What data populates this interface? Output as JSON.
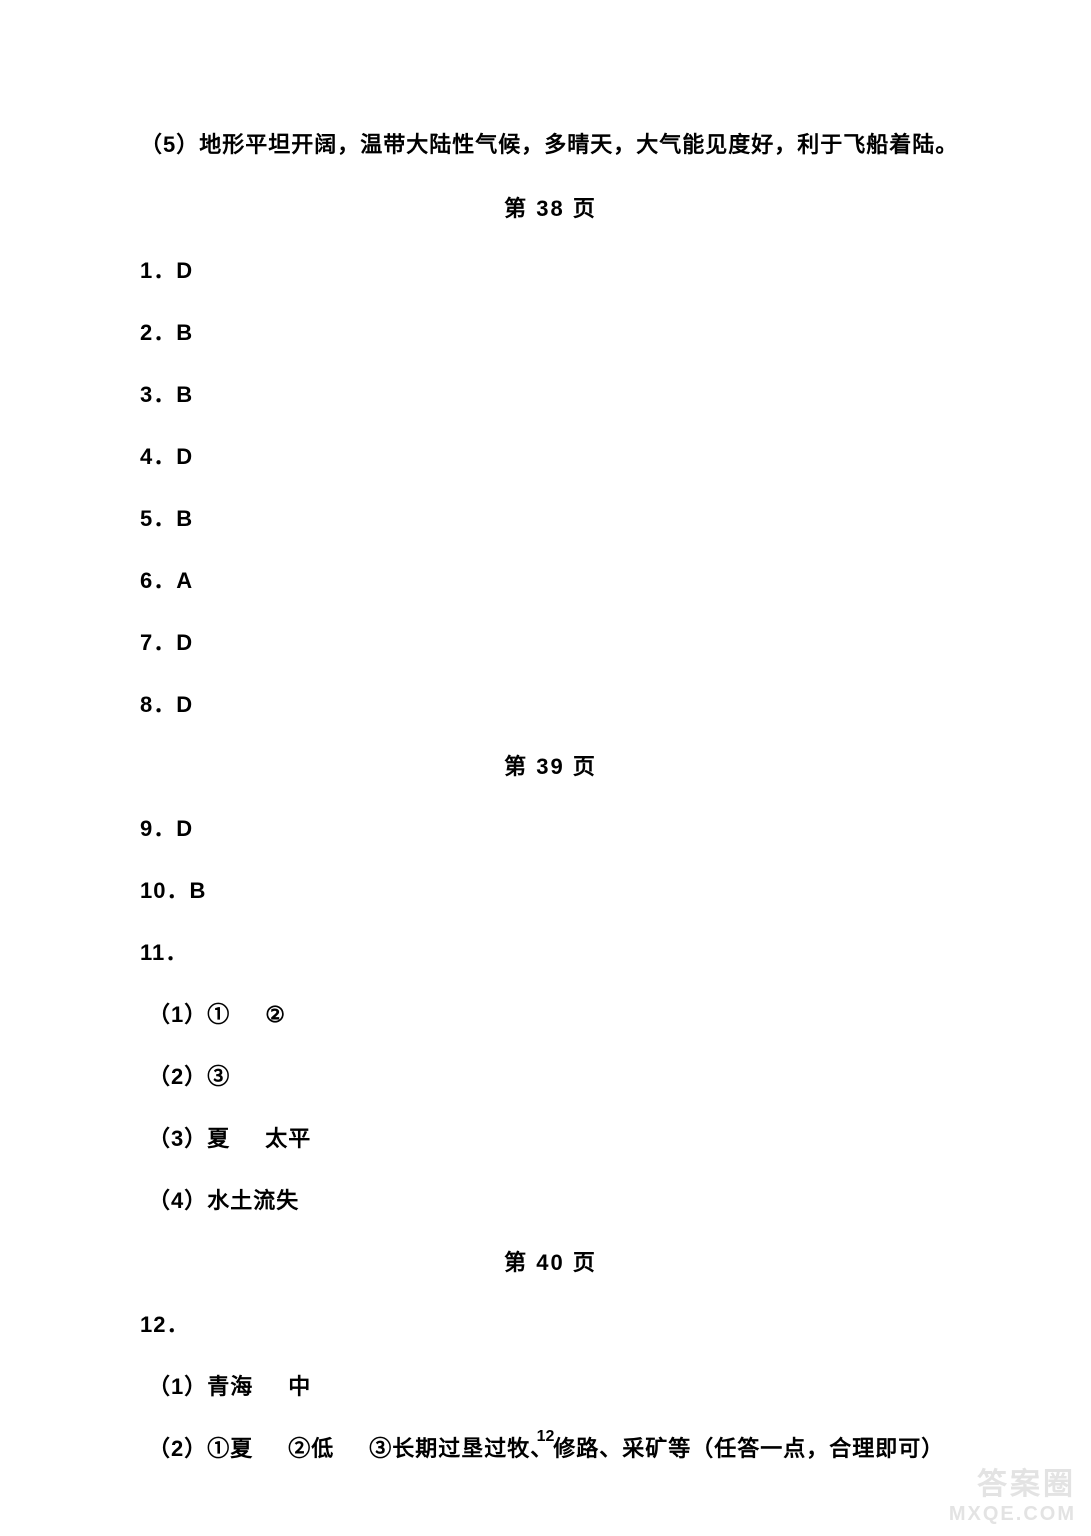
{
  "document": {
    "background_color": "#ffffff",
    "text_color": "#000000",
    "font_size_body": 22,
    "font_size_pagenum": 16,
    "font_weight": "bold",
    "intro_line": "（5）地形平坦开阔，温带大陆性气候，多晴天，大气能见度好，利于飞船着陆。",
    "section_38": {
      "heading": "第 38 页",
      "items": [
        "1．D",
        "2．B",
        "3．B",
        "4．D",
        "5．B",
        "6．A",
        "7．D",
        "8．D"
      ]
    },
    "section_39": {
      "heading": "第 39 页",
      "items": [
        "9．D",
        "10．B",
        "11．"
      ],
      "sub_items": {
        "s1_prefix": "（1）①",
        "s1_suffix": "②",
        "s2": "（2）③",
        "s3_prefix": "（3）夏",
        "s3_suffix": "太平",
        "s4": "（4）水土流失"
      }
    },
    "section_40": {
      "heading": "第 40 页",
      "items": [
        "12．"
      ],
      "sub_items": {
        "s1_prefix": "（1）青海",
        "s1_suffix": "中",
        "s2_part1": "（2）①夏",
        "s2_part2": "②低",
        "s2_part3": "③长期过垦过牧、修路、采矿等（任答一点，合理即可）"
      }
    },
    "page_number": "12",
    "watermark": {
      "top": "答案圈",
      "bottom": "MXQE.COM",
      "color": "rgba(200, 200, 200, 0.5)"
    }
  }
}
